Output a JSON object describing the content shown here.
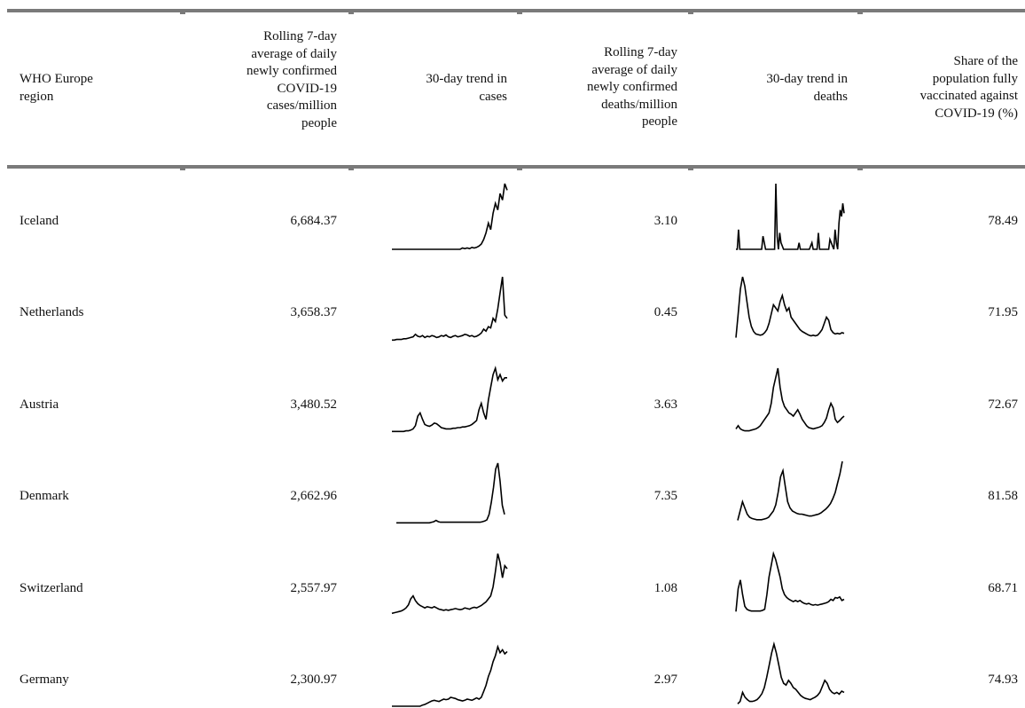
{
  "headers": {
    "region": [
      "WHO Europe",
      "region"
    ],
    "cases_avg": [
      "Rolling 7-day",
      "average of daily",
      "newly confirmed",
      "COVID-19",
      "cases/million",
      "people"
    ],
    "cases_trend": [
      "30-day trend in",
      "cases"
    ],
    "deaths_avg": [
      "Rolling 7-day",
      "average of daily",
      "newly confirmed",
      "deaths/million",
      "people"
    ],
    "deaths_trend": [
      "30-day trend in",
      "deaths"
    ],
    "vaccinated": [
      "Share of the",
      "population fully",
      "vaccinated against",
      "COVID-19 (%)"
    ]
  },
  "rows": [
    {
      "region": "Iceland",
      "cases": "6,684.37",
      "deaths": "3.10",
      "vaccinated": "78.49"
    },
    {
      "region": "Netherlands",
      "cases": "3,658.37",
      "deaths": "0.45",
      "vaccinated": "71.95"
    },
    {
      "region": "Austria",
      "cases": "3,480.52",
      "deaths": "3.63",
      "vaccinated": "72.67"
    },
    {
      "region": "Denmark",
      "cases": "2,662.96",
      "deaths": "7.35",
      "vaccinated": "81.58"
    },
    {
      "region": "Switzerland",
      "cases": "2,557.97",
      "deaths": "1.08",
      "vaccinated": "68.71"
    },
    {
      "region": "Germany",
      "cases": "2,300.97",
      "deaths": "2.97",
      "vaccinated": "74.93"
    }
  ],
  "chart_data": {
    "type": "table",
    "columns": [
      "WHO Europe region",
      "Rolling 7-day average of daily newly confirmed COVID-19 cases/million people",
      "30-day trend in cases",
      "Rolling 7-day average of daily newly confirmed deaths/million people",
      "30-day trend in deaths",
      "Share of the population fully vaccinated against COVID-19 (%)"
    ],
    "cases_trend": [
      [
        0,
        0,
        0,
        0,
        0,
        0,
        0,
        0,
        0,
        0,
        0,
        0,
        0,
        0,
        0,
        0,
        0,
        0,
        0,
        0,
        0,
        0,
        0,
        0,
        0,
        0,
        0,
        0,
        0,
        0,
        0.02,
        0.01,
        0.02,
        0.01,
        0.03,
        0.02,
        0.03,
        0.05,
        0.08,
        0.15,
        0.25,
        0.4,
        0.3,
        0.55,
        0.7,
        0.6,
        0.85,
        0.75,
        1.0,
        0.9
      ],
      [
        0.01,
        0.01,
        0.02,
        0.02,
        0.02,
        0.03,
        0.03,
        0.04,
        0.05,
        0.06,
        0.1,
        0.07,
        0.06,
        0.08,
        0.05,
        0.07,
        0.06,
        0.08,
        0.07,
        0.05,
        0.06,
        0.08,
        0.07,
        0.09,
        0.06,
        0.05,
        0.07,
        0.08,
        0.06,
        0.07,
        0.08,
        0.1,
        0.09,
        0.07,
        0.08,
        0.06,
        0.07,
        0.09,
        0.12,
        0.18,
        0.15,
        0.22,
        0.2,
        0.35,
        0.3,
        0.5,
        0.75,
        1.0,
        0.4,
        0.35
      ],
      [
        0.01,
        0.01,
        0.01,
        0.01,
        0.01,
        0.01,
        0.02,
        0.02,
        0.03,
        0.05,
        0.1,
        0.25,
        0.3,
        0.2,
        0.12,
        0.1,
        0.09,
        0.11,
        0.14,
        0.13,
        0.1,
        0.07,
        0.06,
        0.05,
        0.05,
        0.05,
        0.06,
        0.06,
        0.07,
        0.07,
        0.08,
        0.08,
        0.09,
        0.1,
        0.12,
        0.15,
        0.18,
        0.35,
        0.45,
        0.3,
        0.2,
        0.5,
        0.7,
        0.9,
        1.0,
        0.82,
        0.9,
        0.8,
        0.85,
        0.85
      ],
      [
        0.01,
        0.01,
        0.01,
        0.01,
        0.01,
        0.01,
        0.01,
        0.01,
        0.01,
        0.01,
        0.01,
        0.01,
        0.01,
        0.01,
        0.01,
        0.01,
        0.02,
        0.03,
        0.05,
        0.03,
        0.02,
        0.02,
        0.02,
        0.02,
        0.02,
        0.02,
        0.02,
        0.02,
        0.02,
        0.02,
        0.02,
        0.02,
        0.02,
        0.02,
        0.02,
        0.02,
        0.02,
        0.02,
        0.02,
        0.03,
        0.04,
        0.06,
        0.15,
        0.35,
        0.6,
        0.9,
        1.0,
        0.7,
        0.3,
        0.15
      ],
      [
        0.01,
        0.02,
        0.03,
        0.04,
        0.05,
        0.07,
        0.1,
        0.15,
        0.25,
        0.3,
        0.22,
        0.17,
        0.14,
        0.12,
        0.1,
        0.12,
        0.11,
        0.1,
        0.12,
        0.1,
        0.08,
        0.07,
        0.06,
        0.07,
        0.06,
        0.07,
        0.08,
        0.09,
        0.08,
        0.07,
        0.08,
        0.1,
        0.09,
        0.08,
        0.1,
        0.11,
        0.1,
        0.12,
        0.14,
        0.17,
        0.2,
        0.25,
        0.3,
        0.45,
        0.7,
        1.0,
        0.85,
        0.6,
        0.8,
        0.75
      ],
      [
        0,
        0,
        0,
        0,
        0,
        0,
        0,
        0,
        0,
        0,
        0,
        0,
        0,
        0.02,
        0.03,
        0.05,
        0.07,
        0.09,
        0.1,
        0.09,
        0.08,
        0.1,
        0.12,
        0.11,
        0.12,
        0.15,
        0.14,
        0.13,
        0.11,
        0.1,
        0.09,
        0.1,
        0.12,
        0.11,
        0.1,
        0.12,
        0.14,
        0.12,
        0.15,
        0.25,
        0.35,
        0.5,
        0.6,
        0.75,
        0.85,
        1.0,
        0.9,
        0.95,
        0.88,
        0.92
      ]
    ],
    "deaths_trend": [
      [
        0,
        0,
        0.3,
        0,
        0,
        0,
        0,
        0,
        0,
        0,
        0,
        0,
        0,
        0,
        0,
        0,
        0,
        0,
        0,
        0,
        0,
        0.2,
        0.1,
        0,
        0,
        0,
        0,
        0,
        0,
        0,
        0,
        1.0,
        0.2,
        0,
        0.25,
        0.1,
        0.05,
        0,
        0,
        0,
        0,
        0,
        0,
        0,
        0,
        0,
        0,
        0,
        0,
        0.1,
        0,
        0,
        0,
        0,
        0,
        0,
        0,
        0,
        0.05,
        0.1,
        0,
        0,
        0,
        0,
        0.25,
        0,
        0,
        0,
        0,
        0,
        0,
        0,
        0,
        0.15,
        0.1,
        0.05,
        0,
        0.3,
        0.1,
        0,
        0.4,
        0.6,
        0.5,
        0.7,
        0.55
      ],
      [
        0.02,
        0.4,
        0.8,
        1.0,
        0.85,
        0.6,
        0.35,
        0.2,
        0.12,
        0.08,
        0.07,
        0.06,
        0.07,
        0.1,
        0.15,
        0.25,
        0.4,
        0.55,
        0.5,
        0.45,
        0.6,
        0.7,
        0.55,
        0.45,
        0.5,
        0.35,
        0.3,
        0.25,
        0.2,
        0.15,
        0.12,
        0.1,
        0.08,
        0.06,
        0.05,
        0.06,
        0.05,
        0.06,
        0.1,
        0.15,
        0.25,
        0.35,
        0.3,
        0.15,
        0.1,
        0.08,
        0.09,
        0.08,
        0.1,
        0.09
      ],
      [
        0.05,
        0.1,
        0.05,
        0.03,
        0.02,
        0.02,
        0.02,
        0.03,
        0.04,
        0.05,
        0.07,
        0.1,
        0.15,
        0.2,
        0.25,
        0.3,
        0.45,
        0.7,
        0.85,
        1.0,
        0.7,
        0.5,
        0.4,
        0.35,
        0.3,
        0.28,
        0.25,
        0.3,
        0.35,
        0.28,
        0.2,
        0.15,
        0.1,
        0.07,
        0.06,
        0.05,
        0.06,
        0.07,
        0.08,
        0.1,
        0.15,
        0.22,
        0.35,
        0.45,
        0.38,
        0.2,
        0.15,
        0.18,
        0.22,
        0.25
      ],
      [
        0.05,
        0.2,
        0.35,
        0.25,
        0.15,
        0.1,
        0.08,
        0.07,
        0.06,
        0.06,
        0.06,
        0.07,
        0.08,
        0.1,
        0.15,
        0.2,
        0.3,
        0.5,
        0.75,
        0.85,
        0.6,
        0.35,
        0.25,
        0.2,
        0.18,
        0.16,
        0.15,
        0.15,
        0.14,
        0.13,
        0.12,
        0.12,
        0.13,
        0.14,
        0.15,
        0.17,
        0.2,
        0.23,
        0.27,
        0.32,
        0.4,
        0.5,
        0.65,
        0.8,
        1.0
      ],
      [
        0.01,
        0.4,
        0.55,
        0.3,
        0.1,
        0.05,
        0.03,
        0.02,
        0.02,
        0.02,
        0.02,
        0.02,
        0.03,
        0.05,
        0.3,
        0.6,
        0.8,
        1.0,
        0.9,
        0.75,
        0.6,
        0.4,
        0.3,
        0.25,
        0.22,
        0.2,
        0.18,
        0.2,
        0.18,
        0.2,
        0.17,
        0.15,
        0.14,
        0.15,
        0.13,
        0.12,
        0.13,
        0.12,
        0.13,
        0.14,
        0.15,
        0.16,
        0.18,
        0.22,
        0.2,
        0.25,
        0.24,
        0.26,
        0.2,
        0.22
      ],
      [
        0.01,
        0.05,
        0.2,
        0.12,
        0.08,
        0.05,
        0.05,
        0.06,
        0.08,
        0.12,
        0.18,
        0.28,
        0.45,
        0.65,
        0.85,
        1.0,
        0.85,
        0.65,
        0.45,
        0.35,
        0.32,
        0.4,
        0.35,
        0.28,
        0.25,
        0.2,
        0.15,
        0.12,
        0.1,
        0.09,
        0.08,
        0.1,
        0.12,
        0.15,
        0.2,
        0.3,
        0.4,
        0.35,
        0.25,
        0.2,
        0.18,
        0.2,
        0.17,
        0.22,
        0.2
      ]
    ]
  }
}
